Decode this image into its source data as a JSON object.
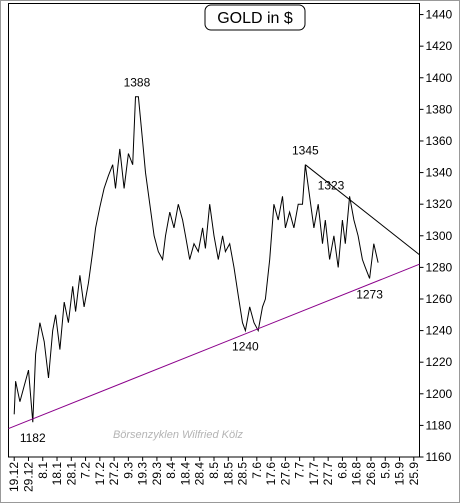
{
  "chart_data": {
    "type": "line",
    "title": "GOLD in $",
    "watermark": "Börsenzyklen Wilfried Kölz",
    "xlim": [
      -4,
      284
    ],
    "ylim": [
      1160,
      1447
    ],
    "yticks": [
      1160,
      1180,
      1200,
      1220,
      1240,
      1260,
      1280,
      1300,
      1320,
      1340,
      1360,
      1380,
      1400,
      1420,
      1440
    ],
    "xticks": [
      {
        "value": 0,
        "label": "19.12"
      },
      {
        "value": 10,
        "label": "29.12"
      },
      {
        "value": 20,
        "label": "8.1"
      },
      {
        "value": 30,
        "label": "18.1"
      },
      {
        "value": 40,
        "label": "28.1"
      },
      {
        "value": 50,
        "label": "7.2"
      },
      {
        "value": 60,
        "label": "17.2"
      },
      {
        "value": 70,
        "label": "27.2"
      },
      {
        "value": 80,
        "label": "9.3"
      },
      {
        "value": 90,
        "label": "19.3"
      },
      {
        "value": 100,
        "label": "29.3"
      },
      {
        "value": 110,
        "label": "8.4"
      },
      {
        "value": 120,
        "label": "18.4"
      },
      {
        "value": 130,
        "label": "28.4"
      },
      {
        "value": 140,
        "label": "8.5"
      },
      {
        "value": 150,
        "label": "18.5"
      },
      {
        "value": 160,
        "label": "28.5"
      },
      {
        "value": 170,
        "label": "7.6"
      },
      {
        "value": 180,
        "label": "17.6"
      },
      {
        "value": 190,
        "label": "27.6"
      },
      {
        "value": 200,
        "label": "7.7"
      },
      {
        "value": 210,
        "label": "17.7"
      },
      {
        "value": 220,
        "label": "27.7"
      },
      {
        "value": 230,
        "label": "6.8"
      },
      {
        "value": 240,
        "label": "16.8"
      },
      {
        "value": 250,
        "label": "26.8"
      },
      {
        "value": 260,
        "label": "5.9"
      },
      {
        "value": 270,
        "label": "15.9"
      },
      {
        "value": 280,
        "label": "25.9"
      }
    ],
    "series": [
      {
        "name": "Gold",
        "color": "#000000",
        "x": [
          0,
          1,
          4,
          7,
          10,
          13,
          15,
          18,
          21,
          24,
          27,
          29,
          32,
          35,
          38,
          41,
          43,
          46,
          49,
          52,
          55,
          57,
          60,
          63,
          66,
          69,
          71,
          74,
          77,
          80,
          83,
          85,
          87,
          90,
          92,
          95,
          98,
          101,
          104,
          106,
          109,
          112,
          115,
          118,
          120,
          123,
          126,
          129,
          132,
          134,
          137,
          140,
          143,
          146,
          148,
          151,
          154,
          157,
          160,
          162,
          165,
          168,
          171,
          174,
          176,
          179,
          182,
          185,
          188,
          190,
          193,
          196,
          199,
          202,
          204,
          207,
          210,
          213,
          216,
          218,
          221,
          224,
          227,
          230,
          232,
          235,
          238,
          241,
          244,
          246,
          249,
          252,
          255
        ],
        "values": [
          1187,
          1208,
          1195,
          1205,
          1215,
          1182,
          1225,
          1245,
          1233,
          1210,
          1240,
          1250,
          1228,
          1258,
          1245,
          1268,
          1252,
          1275,
          1255,
          1270,
          1290,
          1305,
          1318,
          1330,
          1338,
          1345,
          1330,
          1355,
          1330,
          1352,
          1345,
          1388,
          1388,
          1360,
          1340,
          1320,
          1300,
          1290,
          1285,
          1300,
          1315,
          1305,
          1320,
          1310,
          1300,
          1285,
          1295,
          1290,
          1305,
          1292,
          1320,
          1300,
          1285,
          1300,
          1290,
          1295,
          1280,
          1262,
          1245,
          1240,
          1255,
          1245,
          1240,
          1255,
          1260,
          1285,
          1320,
          1310,
          1325,
          1305,
          1315,
          1305,
          1320,
          1320,
          1345,
          1325,
          1305,
          1320,
          1295,
          1310,
          1285,
          1300,
          1280,
          1310,
          1295,
          1325,
          1310,
          1300,
          1285,
          1280,
          1273,
          1295,
          1283
        ]
      }
    ],
    "trendlines": [
      {
        "color": "#8b008b",
        "x": [
          -4,
          284
        ],
        "values": [
          1178,
          1282
        ]
      },
      {
        "color": "#000000",
        "x": [
          204,
          284
        ],
        "values": [
          1345,
          1288
        ]
      }
    ],
    "annotations": [
      {
        "value": 1388,
        "x": 86,
        "position": "above"
      },
      {
        "value": 1345,
        "x": 204,
        "position": "above"
      },
      {
        "value": 1323,
        "x": 222,
        "position": "above"
      },
      {
        "value": 1182,
        "x": 13,
        "position": "below"
      },
      {
        "value": 1240,
        "x": 162,
        "position": "below"
      },
      {
        "value": 1273,
        "x": 249,
        "position": "below"
      }
    ]
  }
}
